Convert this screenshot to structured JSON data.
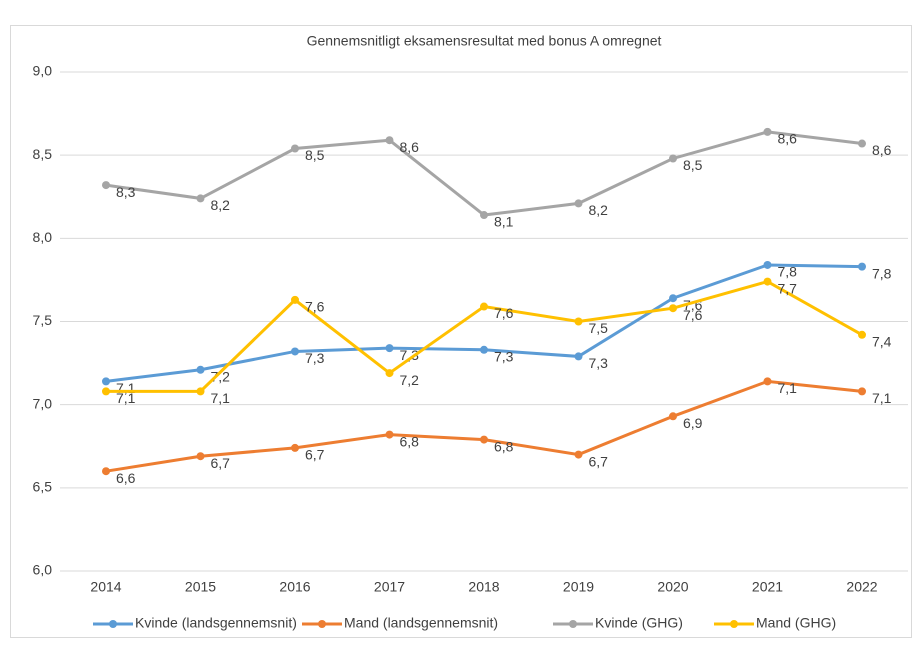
{
  "chart_data": {
    "type": "line",
    "title": "Gennemsnitligt eksamensresultat med bonus A omregnet",
    "categories": [
      "2014",
      "2015",
      "2016",
      "2017",
      "2018",
      "2019",
      "2020",
      "2021",
      "2022"
    ],
    "series": [
      {
        "name": "Kvinde (landsgennemsnit)",
        "color": "#5b9bd5",
        "values": [
          7.14,
          7.21,
          7.32,
          7.34,
          7.33,
          7.29,
          7.64,
          7.84,
          7.83
        ],
        "value_labels": [
          "7,1",
          "7,2",
          "7,3",
          "7,3",
          "7,3",
          "7,3",
          "7,6",
          "7,8",
          "7,8"
        ]
      },
      {
        "name": "Mand (landsgennemsnit)",
        "color": "#ed7d31",
        "values": [
          6.6,
          6.69,
          6.74,
          6.82,
          6.79,
          6.7,
          6.93,
          7.14,
          7.08
        ],
        "value_labels": [
          "6,6",
          "6,7",
          "6,7",
          "6,8",
          "6,8",
          "6,7",
          "6,9",
          "7,1",
          "7,1"
        ]
      },
      {
        "name": "Kvinde (GHG)",
        "color": "#a5a5a5",
        "values": [
          8.32,
          8.24,
          8.54,
          8.59,
          8.14,
          8.21,
          8.48,
          8.64,
          8.57
        ],
        "value_labels": [
          "8,3",
          "8,2",
          "8,5",
          "8,6",
          "8,1",
          "8,2",
          "8,5",
          "8,6",
          "8,6"
        ]
      },
      {
        "name": "Mand (GHG)",
        "color": "#ffc000",
        "values": [
          7.08,
          7.08,
          7.63,
          7.19,
          7.59,
          7.5,
          7.58,
          7.74,
          7.42
        ],
        "value_labels": [
          "7,1",
          "7,1",
          "7,6",
          "7,2",
          "7,6",
          "7,5",
          "7,6",
          "7,7",
          "7,4"
        ]
      }
    ],
    "ylim": [
      6,
      9
    ],
    "yticks": [
      {
        "value": 6,
        "label": "6,0"
      },
      {
        "value": 6.5,
        "label": "6,5"
      },
      {
        "value": 7,
        "label": "7,0"
      },
      {
        "value": 7.5,
        "label": "7,5"
      },
      {
        "value": 8,
        "label": "8,0"
      },
      {
        "value": 8.5,
        "label": "8,5"
      },
      {
        "value": 9,
        "label": "9,0"
      }
    ],
    "grid": true,
    "legend": "bottom"
  }
}
